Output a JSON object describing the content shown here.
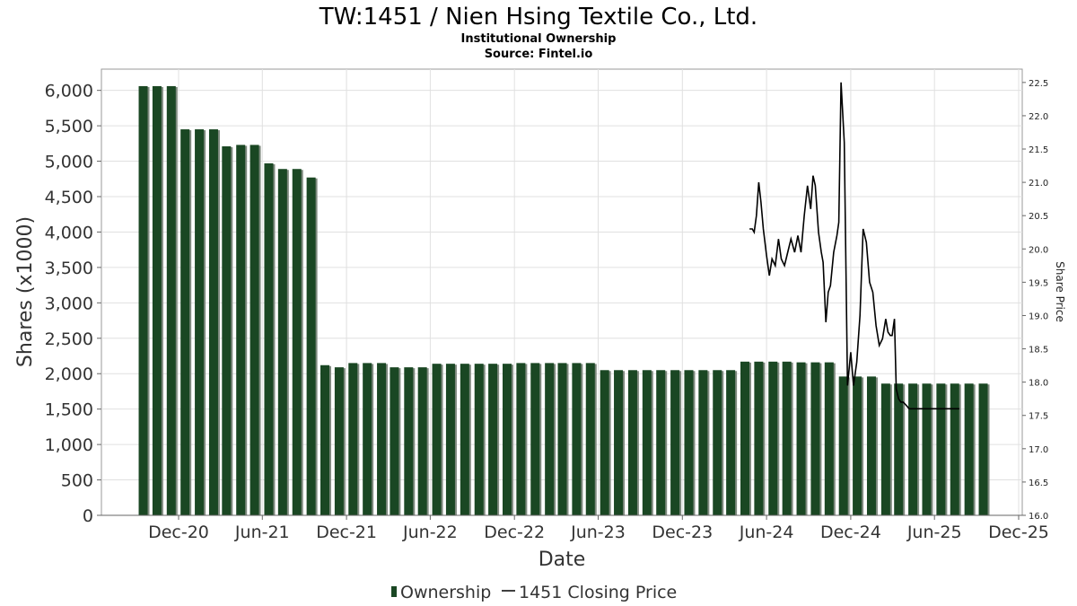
{
  "chart_data": {
    "type": "bar",
    "title": "TW:1451 / Nien Hsing Textile Co., Ltd.",
    "subtitles": [
      "Institutional Ownership",
      "Source: Fintel.io"
    ],
    "xlabel": "Date",
    "ylabel": "Shares (x1000)",
    "y2label": "Share Price",
    "ylim": [
      0,
      6300
    ],
    "y2lim": [
      16.0,
      22.7
    ],
    "y_ticks": [
      "0",
      "500",
      "1,000",
      "1,500",
      "2,000",
      "2,500",
      "3,000",
      "3,500",
      "4,000",
      "4,500",
      "5,000",
      "5,500",
      "6,000"
    ],
    "y2_ticks": [
      "16.0",
      "16.5",
      "17.0",
      "17.5",
      "18.0",
      "18.5",
      "19.0",
      "19.5",
      "20.0",
      "20.5",
      "21.0",
      "21.5",
      "22.0",
      "22.5"
    ],
    "x_ticks": [
      "Dec-20",
      "Jun-21",
      "Dec-21",
      "Jun-22",
      "Dec-22",
      "Jun-23",
      "Dec-23",
      "Jun-24",
      "Dec-24",
      "Jun-25",
      "Dec-25"
    ],
    "grid": true,
    "legend_placement": "bottom",
    "series": [
      {
        "name": "Ownership",
        "type": "bar",
        "color": "#1a4723",
        "shadow_color": "#7f8a7f",
        "x": [
          "2020-09",
          "2020-10",
          "2020-11",
          "2020-12",
          "2021-01",
          "2021-02",
          "2021-03",
          "2021-04",
          "2021-05",
          "2021-06",
          "2021-07",
          "2021-08",
          "2021-09",
          "2021-10",
          "2021-11",
          "2021-12",
          "2022-01",
          "2022-02",
          "2022-03",
          "2022-04",
          "2022-05",
          "2022-06",
          "2022-07",
          "2022-08",
          "2022-09",
          "2022-10",
          "2022-11",
          "2022-12",
          "2023-01",
          "2023-02",
          "2023-03",
          "2023-04",
          "2023-05",
          "2023-06",
          "2023-07",
          "2023-08",
          "2023-09",
          "2023-10",
          "2023-11",
          "2023-12",
          "2024-01",
          "2024-02",
          "2024-03",
          "2024-04",
          "2024-05",
          "2024-06",
          "2024-07",
          "2024-08",
          "2024-09",
          "2024-10",
          "2024-11",
          "2024-12",
          "2025-01",
          "2025-02",
          "2025-03",
          "2025-04",
          "2025-05",
          "2025-06",
          "2025-07",
          "2025-08",
          "2025-09"
        ],
        "values": [
          6060,
          6060,
          6060,
          5450,
          5450,
          5450,
          5210,
          5230,
          5230,
          4970,
          4890,
          4890,
          4770,
          2120,
          2090,
          2150,
          2150,
          2150,
          2090,
          2090,
          2090,
          2140,
          2140,
          2140,
          2140,
          2140,
          2140,
          2150,
          2150,
          2150,
          2150,
          2150,
          2150,
          2050,
          2050,
          2050,
          2050,
          2050,
          2050,
          2050,
          2050,
          2050,
          2050,
          2170,
          2170,
          2170,
          2170,
          2160,
          2160,
          2160,
          1960,
          1960,
          1960,
          1860,
          1860,
          1860,
          1860,
          1860,
          1860,
          1860,
          1860
        ]
      },
      {
        "name": "1451 Closing Price",
        "type": "line",
        "color": "#000000",
        "x": [
          "2024-04-25",
          "2024-05-01",
          "2024-05-05",
          "2024-05-10",
          "2024-05-15",
          "2024-05-20",
          "2024-05-25",
          "2024-06-01",
          "2024-06-07",
          "2024-06-13",
          "2024-06-20",
          "2024-06-27",
          "2024-07-03",
          "2024-07-10",
          "2024-07-17",
          "2024-07-24",
          "2024-08-01",
          "2024-08-08",
          "2024-08-15",
          "2024-08-22",
          "2024-08-29",
          "2024-09-05",
          "2024-09-10",
          "2024-09-15",
          "2024-09-22",
          "2024-09-28",
          "2024-10-02",
          "2024-10-08",
          "2024-10-13",
          "2024-10-18",
          "2024-10-25",
          "2024-11-01",
          "2024-11-05",
          "2024-11-10",
          "2024-11-17",
          "2024-11-24",
          "2024-12-01",
          "2024-12-07",
          "2024-12-14",
          "2024-12-21",
          "2024-12-28",
          "2025-01-04",
          "2025-01-11",
          "2025-01-18",
          "2025-01-25",
          "2025-02-01",
          "2025-02-08",
          "2025-02-15",
          "2025-02-20",
          "2025-02-25",
          "2025-03-01",
          "2025-03-06",
          "2025-03-10",
          "2025-03-15",
          "2025-03-20",
          "2025-03-25",
          "2025-04-01",
          "2025-04-07",
          "2025-04-13",
          "2025-04-19",
          "2025-04-25",
          "2025-05-01",
          "2025-05-07",
          "2025-05-13",
          "2025-05-19",
          "2025-05-25",
          "2025-06-01",
          "2025-06-07",
          "2025-06-13",
          "2025-06-19",
          "2025-06-25",
          "2025-07-01",
          "2025-07-07",
          "2025-07-13",
          "2025-07-19",
          "2025-07-25"
        ],
        "values": [
          20.3,
          20.3,
          20.25,
          20.5,
          21.0,
          20.7,
          20.3,
          19.9,
          19.6,
          19.85,
          19.75,
          20.15,
          19.85,
          19.75,
          19.95,
          20.15,
          19.95,
          20.2,
          19.95,
          20.5,
          20.95,
          20.6,
          21.1,
          20.95,
          20.25,
          19.95,
          19.8,
          18.9,
          19.35,
          19.45,
          19.95,
          20.2,
          20.4,
          22.5,
          21.6,
          17.95,
          18.45,
          17.95,
          18.3,
          19.0,
          20.3,
          20.1,
          19.5,
          19.35,
          18.85,
          18.55,
          18.65,
          18.95,
          18.75,
          18.7,
          18.7,
          18.95,
          17.9,
          17.75,
          17.7,
          17.7,
          17.65,
          17.6,
          17.6,
          17.6,
          17.6,
          17.6,
          17.6,
          17.6,
          17.6,
          17.6,
          17.6,
          17.6,
          17.6,
          17.6,
          17.6,
          17.6,
          17.6,
          17.6,
          17.6,
          17.6
        ]
      }
    ]
  }
}
